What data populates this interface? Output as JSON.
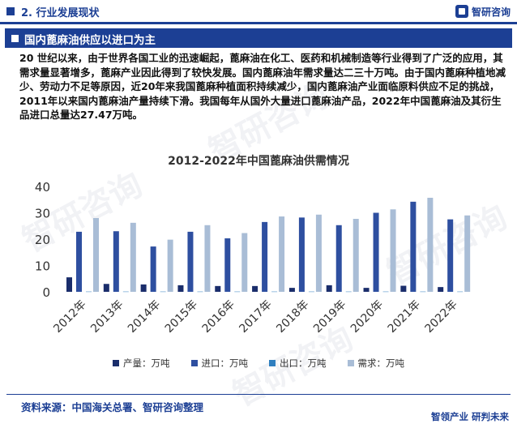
{
  "header": {
    "section": "2. 行业发展现状",
    "logo_text": "智研咨询"
  },
  "title_bar": {
    "title": "国内蓖麻油供应以进口为主"
  },
  "paragraph": "20 世纪以来，由于世界各国工业的迅速崛起，蓖麻油在化工、医药和机械制造等行业得到了广泛的应用，其需求量显著增多，蓖麻产业因此得到了较快发展。国内蓖麻油年需求量达二三十万吨。由于国内蓖麻种植地减少、劳动力不足等原因，近20年来我国蓖麻种植面积持续减少，国内蓖麻油产业面临原料供应不足的挑战，2011年以来国内蓖麻油产量持续下滑。我国每年从国外大量进口蓖麻油产品，2022年中国蓖麻油及其衍生品进口总量达27.47万吨。",
  "watermark": "智研咨询",
  "chart_data": {
    "type": "bar",
    "title": "2012-2022年中国蓖麻油供需情况",
    "xlabel": "",
    "ylabel": "",
    "ylim": [
      0,
      40
    ],
    "yticks": [
      0,
      10,
      20,
      30,
      40
    ],
    "grid": false,
    "legend_position": "bottom",
    "categories": [
      "2012年",
      "2013年",
      "2014年",
      "2015年",
      "2016年",
      "2017年",
      "2018年",
      "2019年",
      "2020年",
      "2021年",
      "2022年"
    ],
    "series": [
      {
        "name": "产量：万吨",
        "color": "#1a2d6b",
        "values": [
          5.5,
          3.0,
          2.8,
          2.5,
          2.2,
          2.2,
          1.5,
          2.5,
          1.5,
          2.3,
          1.8
        ]
      },
      {
        "name": "进口：万吨",
        "color": "#2e4fa0",
        "values": [
          22.8,
          23.0,
          17.2,
          22.8,
          20.3,
          26.5,
          28.2,
          25.3,
          30.0,
          34.2,
          27.5
        ]
      },
      {
        "name": "出口：万吨",
        "color": "#2f7fbf",
        "values": [
          0.1,
          0.1,
          0.1,
          0.1,
          0.1,
          0.1,
          0.1,
          0.1,
          0.1,
          0.1,
          0.1
        ]
      },
      {
        "name": "需求：万吨",
        "color": "#a9bdd6",
        "values": [
          28.0,
          26.2,
          19.8,
          25.3,
          22.3,
          28.6,
          29.3,
          27.7,
          31.3,
          35.7,
          29.0
        ]
      }
    ]
  },
  "footer": {
    "source": "资料来源：中国海关总署、智研咨询整理",
    "slogan": "智领产业  研判未来"
  }
}
